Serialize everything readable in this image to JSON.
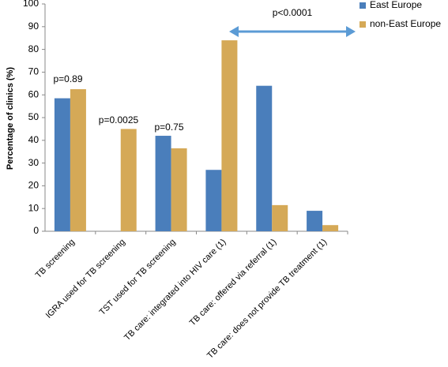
{
  "chart_data": {
    "type": "bar",
    "y_label": "Percentage of clinics (%)",
    "categories": [
      "TB screening",
      "IGRA used for TB screening",
      "TST used for TB screening",
      "TB care: integrated into HIV care (1)",
      "TB care: offered via referral (1)",
      "TB care: does not provide TB treatment (1)"
    ],
    "series": [
      {
        "name": "East Europe",
        "color": "#4a7ebb",
        "values": [
          58.5,
          0,
          42,
          27,
          64,
          9
        ]
      },
      {
        "name": "non-East Europe",
        "color": "#d5a957",
        "values": [
          62.5,
          45,
          36.5,
          84,
          11.5,
          2.7
        ]
      }
    ],
    "ylim": [
      0,
      100
    ],
    "yticks": [
      0,
      10,
      20,
      30,
      40,
      50,
      60,
      70,
      80,
      90,
      100
    ],
    "grid": false,
    "legend": "right",
    "annotations": [
      "p=0.89",
      "p=0.0025",
      "p=0.75",
      "p<0.0001"
    ]
  }
}
